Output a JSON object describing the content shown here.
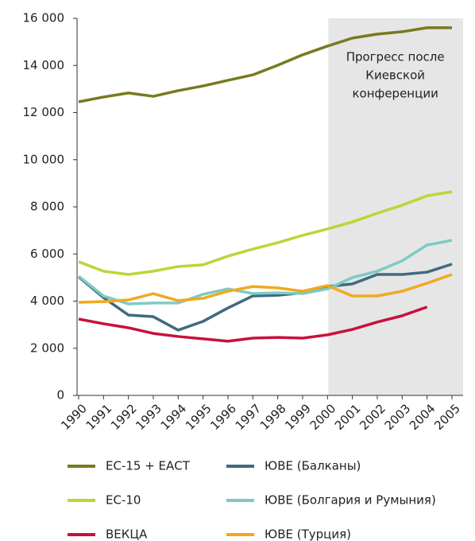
{
  "chart_data": {
    "type": "line",
    "categories": [
      "1990",
      "1991",
      "1992",
      "1993",
      "1994",
      "1995",
      "1996",
      "1997",
      "1998",
      "1999",
      "2000",
      "2001",
      "2002",
      "2003",
      "2004",
      "2005"
    ],
    "annotation": [
      "Прогресс после",
      "Киевской",
      "конференции"
    ],
    "shade_from": "2000",
    "ylim": [
      0,
      16000
    ],
    "yticks": [
      0,
      {
        "value": 2000,
        "label": "2 000"
      },
      {
        "value": 4000,
        "label": "4 000"
      },
      {
        "value": 6000,
        "label": "6 000"
      },
      {
        "value": 8000,
        "label": "8 000"
      },
      {
        "value": 10000,
        "label": "10 000"
      },
      {
        "value": 12000,
        "label": "12 000"
      },
      {
        "value": 14000,
        "label": "14 000"
      },
      {
        "value": 16000,
        "label": "16 000"
      }
    ],
    "series": [
      {
        "name": "ЕС-15 + ЕАСТ",
        "color": "#777a1f",
        "values": [
          12456,
          12660,
          12830,
          12690,
          12930,
          13130,
          13370,
          13600,
          14010,
          14450,
          14820,
          15160,
          15330,
          15430,
          15600,
          15600
        ]
      },
      {
        "name": "ЕС-10",
        "color": "#bfd437",
        "values": [
          5670,
          5270,
          5130,
          5270,
          5470,
          5540,
          5910,
          6210,
          6480,
          6790,
          7060,
          7360,
          7730,
          8070,
          8470,
          8640
        ]
      },
      {
        "name": "ВЕКЦА",
        "color": "#c8103e",
        "values": [
          3240,
          3040,
          2870,
          2630,
          2500,
          2400,
          2300,
          2430,
          2460,
          2430,
          2570,
          2800,
          3110,
          3380,
          3750,
          null
        ]
      },
      {
        "name": "ЮВЕ (Балканы)",
        "color": "#3e6b7f",
        "values": [
          5030,
          4150,
          3410,
          3340,
          2770,
          3140,
          3710,
          4220,
          4250,
          4350,
          4620,
          4730,
          5130,
          5130,
          5230,
          5570
        ]
      },
      {
        "name": "ЮВЕ (Болгария и Румыния)",
        "color": "#7fcbc4",
        "values": [
          5060,
          4220,
          3880,
          3920,
          3920,
          4290,
          4520,
          4320,
          4350,
          4320,
          4520,
          5000,
          5270,
          5710,
          6380,
          6580
        ]
      },
      {
        "name": "ЮВЕ (Турция)",
        "color": "#f0a920",
        "values": [
          3950,
          3980,
          4050,
          4320,
          4020,
          4120,
          4420,
          4620,
          4560,
          4420,
          4660,
          4220,
          4220,
          4420,
          4760,
          5130
        ]
      }
    ]
  }
}
